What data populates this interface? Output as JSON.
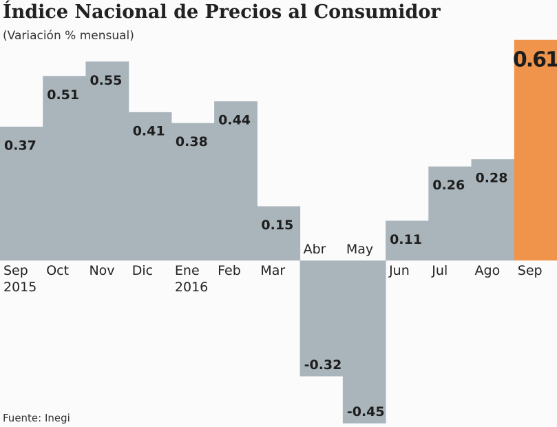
{
  "chart_data": {
    "type": "bar",
    "title": "Índice Nacional de Precios al Consumidor",
    "subtitle": "(Variación % mensual)",
    "source": "Fuente: Inegi",
    "categories": [
      "Sep 2015",
      "Oct",
      "Nov",
      "Dic",
      "Ene 2016",
      "Feb",
      "Mar",
      "Abr",
      "May",
      "Jun",
      "Jul",
      "Ago",
      "Sep"
    ],
    "values": [
      0.37,
      0.51,
      0.55,
      0.41,
      0.38,
      0.44,
      0.15,
      -0.32,
      -0.45,
      0.11,
      0.26,
      0.28,
      0.61
    ],
    "colors": [
      "#a9b5bb",
      "#a9b5bb",
      "#a9b5bb",
      "#a9b5bb",
      "#a9b5bb",
      "#a9b5bb",
      "#a9b5bb",
      "#a9b5bb",
      "#a9b5bb",
      "#a9b5bb",
      "#a9b5bb",
      "#a9b5bb",
      "#f0944b"
    ],
    "ylim": [
      -0.46,
      0.72
    ],
    "grid": false
  }
}
